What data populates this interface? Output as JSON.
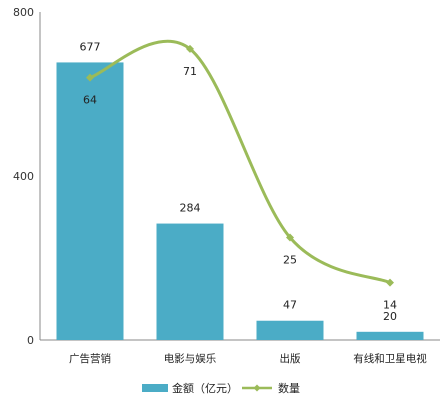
{
  "chart_data": {
    "type": "bar",
    "categories": [
      "广告营销",
      "电影与娱乐",
      "出版",
      "有线和卫星电视"
    ],
    "series": [
      {
        "name": "金额（亿元）",
        "type": "bar",
        "values": [
          677,
          284,
          47,
          20
        ],
        "color": "#4BACC6"
      },
      {
        "name": "数量",
        "type": "line",
        "values": [
          64,
          71,
          25,
          14
        ],
        "color": "#9BBB59"
      }
    ],
    "yticks": [
      "0",
      "400",
      "800"
    ],
    "ylim": [
      0,
      800
    ],
    "line_scale_max": 80,
    "grid": false,
    "legend_position": "bottom"
  }
}
